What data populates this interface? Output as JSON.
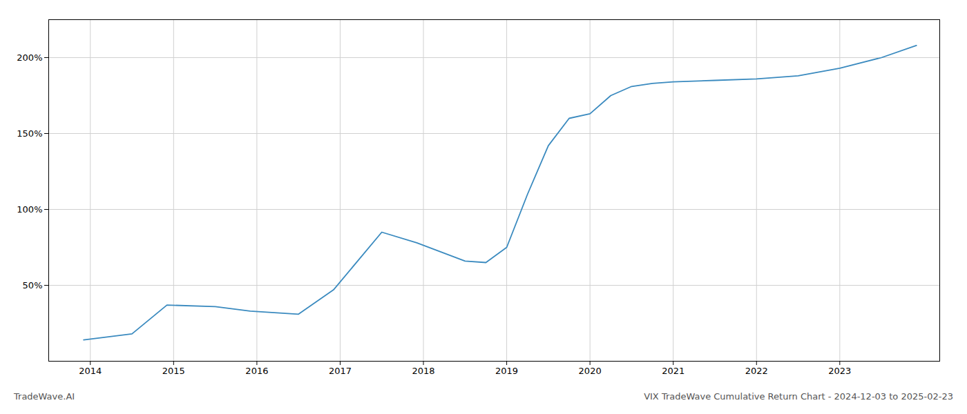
{
  "chart_data": {
    "type": "line",
    "x": [
      2013.92,
      2014.5,
      2014.92,
      2015.5,
      2015.92,
      2016.5,
      2016.92,
      2017.5,
      2017.92,
      2018.5,
      2018.75,
      2019.0,
      2019.25,
      2019.5,
      2019.75,
      2020.0,
      2020.25,
      2020.5,
      2020.75,
      2021.0,
      2021.5,
      2022.0,
      2022.5,
      2023.0,
      2023.5,
      2023.92
    ],
    "values": [
      14,
      18,
      37,
      36,
      33,
      31,
      47,
      85,
      78,
      66,
      65,
      75,
      110,
      142,
      160,
      163,
      175,
      181,
      183,
      184,
      185,
      186,
      188,
      193,
      200,
      208
    ],
    "color": "#3a8abf",
    "xlim": [
      2013.5,
      2024.2
    ],
    "xticks": [
      2014,
      2015,
      2016,
      2017,
      2018,
      2019,
      2020,
      2021,
      2022,
      2023
    ],
    "ylim": [
      0,
      225
    ],
    "yticks": [
      {
        "value": 50,
        "label": "50%"
      },
      {
        "value": 100,
        "label": "100%"
      },
      {
        "value": 150,
        "label": "150%"
      },
      {
        "value": 200,
        "label": "200%"
      }
    ],
    "grid": true,
    "annotations": [
      "TradeWave.AI",
      "VIX TradeWave Cumulative Return Chart - 2024-12-03 to 2025-02-23"
    ]
  }
}
